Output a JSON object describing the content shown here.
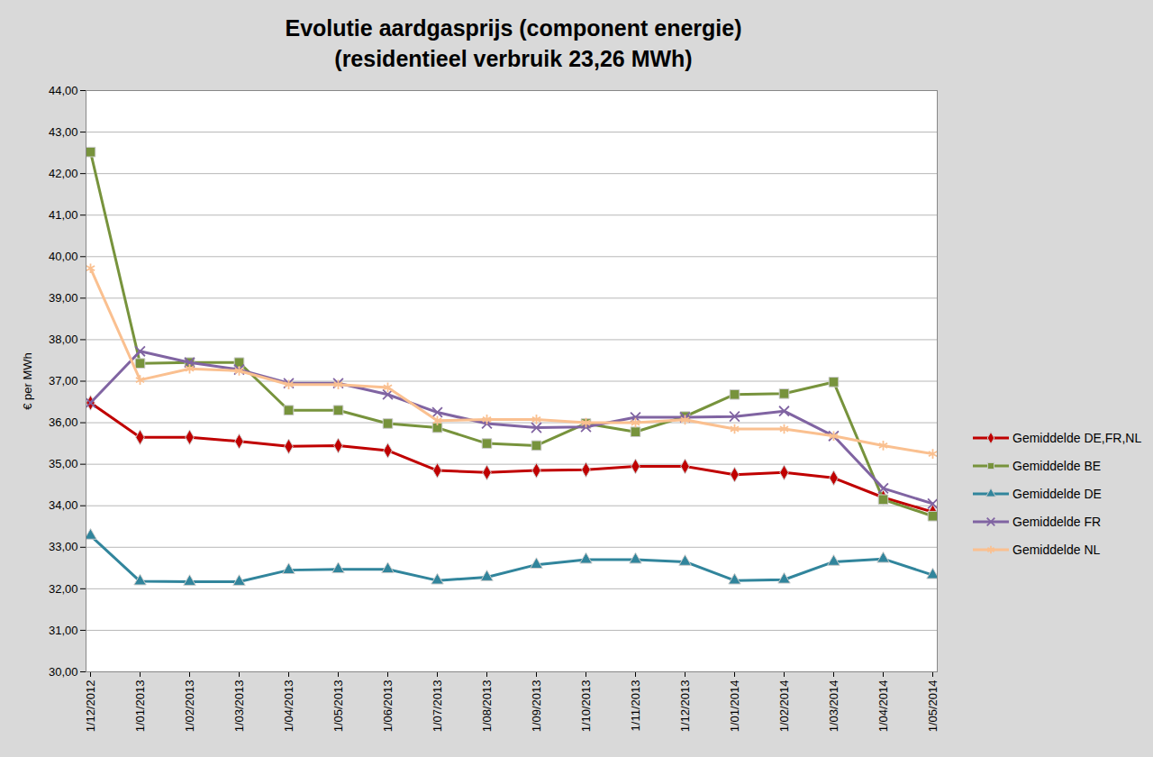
{
  "chart_data": {
    "type": "line",
    "title": "Evolutie aardgasprijs (component energie)",
    "subtitle": "(residentieel verbruik 23,26 MWh)",
    "y_label": "€ per MWh",
    "categories": [
      "1/12/2012",
      "1/01/2013",
      "1/02/2013",
      "1/03/2013",
      "1/04/2013",
      "1/05/2013",
      "1/06/2013",
      "1/07/2013",
      "1/08/2013",
      "1/09/2013",
      "1/10/2013",
      "1/11/2013",
      "1/12/2013",
      "1/01/2014",
      "1/02/2014",
      "1/03/2014",
      "1/04/2014",
      "1/05/2014"
    ],
    "series": [
      {
        "name": "Gemiddelde DE,FR,NL",
        "color": "#c00000",
        "marker": "diamond",
        "values": [
          36.48,
          35.65,
          35.65,
          35.55,
          35.43,
          35.45,
          35.33,
          34.85,
          34.8,
          34.85,
          34.87,
          34.95,
          34.95,
          34.75,
          34.8,
          34.67,
          34.2,
          33.85
        ]
      },
      {
        "name": "Gemiddelde BE",
        "color": "#77933c",
        "marker": "square",
        "values": [
          42.52,
          37.43,
          37.45,
          37.45,
          36.3,
          36.3,
          35.98,
          35.88,
          35.5,
          35.45,
          35.98,
          35.78,
          36.15,
          36.68,
          36.7,
          36.98,
          34.15,
          33.75
        ]
      },
      {
        "name": "Gemiddelde DE",
        "color": "#31859c",
        "marker": "triangle",
        "values": [
          33.28,
          32.18,
          32.17,
          32.17,
          32.45,
          32.47,
          32.47,
          32.2,
          32.28,
          32.58,
          32.7,
          32.7,
          32.65,
          32.2,
          32.22,
          32.65,
          32.72,
          32.33
        ]
      },
      {
        "name": "Gemiddelde FR",
        "color": "#8064a2",
        "marker": "x",
        "values": [
          36.48,
          37.72,
          37.45,
          37.28,
          36.95,
          36.95,
          36.68,
          36.25,
          35.98,
          35.88,
          35.9,
          36.13,
          36.13,
          36.15,
          36.28,
          35.68,
          34.42,
          34.05
        ]
      },
      {
        "name": "Gemiddelde NL",
        "color": "#fac090",
        "marker": "asterisk",
        "values": [
          39.72,
          37.03,
          37.3,
          37.25,
          36.92,
          36.92,
          36.85,
          36.05,
          36.08,
          36.08,
          36.0,
          36.0,
          36.07,
          35.85,
          35.85,
          35.68,
          35.45,
          35.25
        ]
      }
    ],
    "ylim": [
      30,
      44
    ],
    "yticks": [
      {
        "value": 30,
        "label": "30,00"
      },
      {
        "value": 31,
        "label": "31,00"
      },
      {
        "value": 32,
        "label": "32,00"
      },
      {
        "value": 33,
        "label": "33,00"
      },
      {
        "value": 34,
        "label": "34,00"
      },
      {
        "value": 35,
        "label": "35,00"
      },
      {
        "value": 36,
        "label": "36,00"
      },
      {
        "value": 37,
        "label": "37,00"
      },
      {
        "value": 38,
        "label": "38,00"
      },
      {
        "value": 39,
        "label": "39,00"
      },
      {
        "value": 40,
        "label": "40,00"
      },
      {
        "value": 41,
        "label": "41,00"
      },
      {
        "value": 42,
        "label": "42,00"
      },
      {
        "value": 43,
        "label": "43,00"
      },
      {
        "value": 44,
        "label": "44,00"
      }
    ],
    "grid": true,
    "legend": "right"
  }
}
